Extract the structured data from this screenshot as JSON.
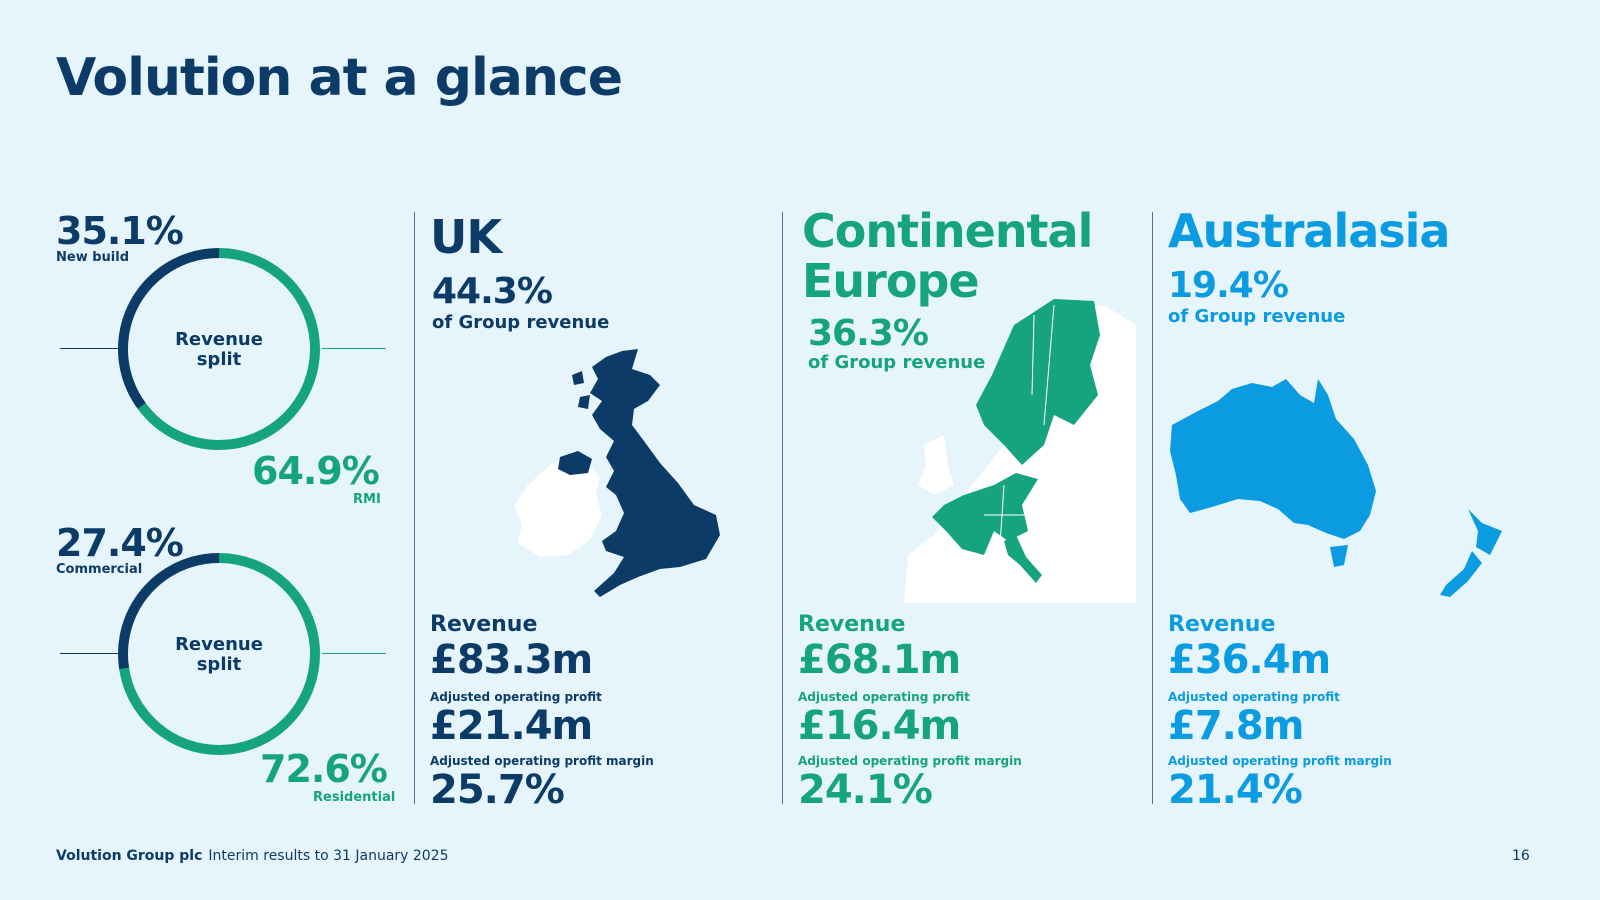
{
  "title": "Volution at a glance",
  "colors": {
    "navy": "#0b3b66",
    "green": "#16a37f",
    "blue": "#0a9be0",
    "background": "#e6f4fc"
  },
  "donuts": [
    {
      "center_line1": "Revenue",
      "center_line2": "split",
      "top_value": "35.1%",
      "top_label": "New build",
      "top_fraction": 0.351,
      "bottom_value": "64.9%",
      "bottom_label": "RMI",
      "bottom_fraction": 0.649
    },
    {
      "center_line1": "Revenue",
      "center_line2": "split",
      "top_value": "27.4%",
      "top_label": "Commercial",
      "top_fraction": 0.274,
      "bottom_value": "72.6%",
      "bottom_label": "Residential",
      "bottom_fraction": 0.726
    }
  ],
  "regions": {
    "uk": {
      "name": "UK",
      "share": "44.3%",
      "share_label": "of Group revenue",
      "revenue_label": "Revenue",
      "revenue": "£83.3m",
      "profit_label": "Adjusted operating profit",
      "profit": "£21.4m",
      "margin_label": "Adjusted operating profit margin",
      "margin": "25.7%",
      "map_icon": "uk-map-icon"
    },
    "europe": {
      "name_line1": "Continental",
      "name_line2": "Europe",
      "share": "36.3%",
      "share_label": "of Group revenue",
      "revenue_label": "Revenue",
      "revenue": "£68.1m",
      "profit_label": "Adjusted operating profit",
      "profit": "£16.4m",
      "margin_label": "Adjusted operating profit margin",
      "margin": "24.1%",
      "map_icon": "europe-map-icon"
    },
    "australasia": {
      "name": "Australasia",
      "share": "19.4%",
      "share_label": "of Group revenue",
      "revenue_label": "Revenue",
      "revenue": "£36.4m",
      "profit_label": "Adjusted operating profit",
      "profit": "£7.8m",
      "margin_label": "Adjusted operating profit margin",
      "margin": "21.4%",
      "map_icon": "australasia-map-icon"
    }
  },
  "footer": {
    "company": "Volution Group plc",
    "subtitle": "Interim results to 31 January 2025",
    "page_number": "16"
  }
}
